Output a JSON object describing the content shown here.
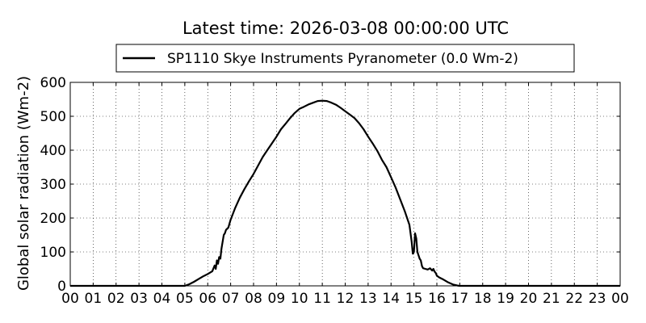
{
  "chart_data": {
    "type": "line",
    "title": "Latest time: 2026-03-08 00:00:00 UTC",
    "xlabel": "",
    "ylabel": "Global solar radiation (Wm-2)",
    "xlim": [
      0,
      24
    ],
    "ylim": [
      0,
      600
    ],
    "xticks": [
      0,
      1,
      2,
      3,
      4,
      5,
      6,
      7,
      8,
      9,
      10,
      11,
      12,
      13,
      14,
      15,
      16,
      17,
      18,
      19,
      20,
      21,
      22,
      23,
      24
    ],
    "xtick_labels": [
      "00",
      "01",
      "02",
      "03",
      "04",
      "05",
      "06",
      "07",
      "08",
      "09",
      "10",
      "11",
      "12",
      "13",
      "14",
      "15",
      "16",
      "17",
      "18",
      "19",
      "20",
      "21",
      "22",
      "23",
      "00"
    ],
    "yticks": [
      0,
      100,
      200,
      300,
      400,
      500,
      600
    ],
    "ytick_labels": [
      "0",
      "100",
      "200",
      "300",
      "400",
      "500",
      "600"
    ],
    "grid": true,
    "legend_position": "top-center",
    "series": [
      {
        "name": "SP1110 Skye Instruments Pyranometer (0.0 Wm-2)",
        "color": "#000000",
        "x": [
          0,
          5.0,
          5.2,
          5.4,
          5.6,
          5.8,
          6.0,
          6.2,
          6.3,
          6.35,
          6.4,
          6.45,
          6.5,
          6.55,
          6.6,
          6.7,
          6.75,
          6.8,
          6.9,
          7.0,
          7.2,
          7.4,
          7.6,
          7.8,
          8.0,
          8.2,
          8.4,
          8.6,
          8.8,
          9.0,
          9.2,
          9.4,
          9.6,
          9.8,
          10.0,
          10.2,
          10.4,
          10.6,
          10.8,
          11.0,
          11.2,
          11.4,
          11.6,
          11.8,
          12.0,
          12.2,
          12.4,
          12.6,
          12.8,
          13.0,
          13.2,
          13.4,
          13.6,
          13.8,
          14.0,
          14.2,
          14.4,
          14.6,
          14.8,
          14.9,
          14.95,
          15.0,
          15.05,
          15.1,
          15.15,
          15.2,
          15.25,
          15.3,
          15.35,
          15.4,
          15.5,
          15.6,
          15.7,
          15.8,
          15.85,
          15.9,
          15.95,
          16.0,
          16.1,
          16.3,
          16.5,
          16.7,
          16.9,
          17.0,
          17.2,
          24
        ],
        "y": [
          0,
          0,
          5,
          12,
          20,
          28,
          35,
          43,
          60,
          50,
          75,
          65,
          85,
          80,
          110,
          150,
          155,
          165,
          172,
          195,
          230,
          260,
          285,
          308,
          330,
          355,
          380,
          400,
          420,
          440,
          462,
          478,
          495,
          510,
          522,
          528,
          535,
          540,
          545,
          546,
          545,
          540,
          534,
          525,
          515,
          505,
          495,
          480,
          462,
          440,
          420,
          398,
          372,
          350,
          320,
          290,
          255,
          220,
          180,
          130,
          95,
          100,
          155,
          140,
          100,
          90,
          80,
          75,
          58,
          52,
          50,
          48,
          52,
          45,
          50,
          42,
          38,
          30,
          25,
          18,
          10,
          4,
          1,
          0,
          0,
          0
        ]
      }
    ]
  }
}
